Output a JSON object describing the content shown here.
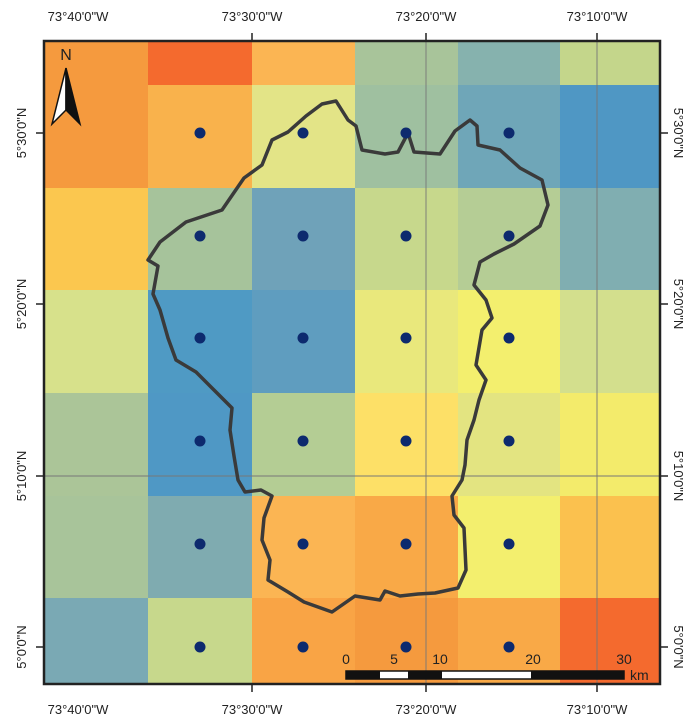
{
  "map": {
    "top_labels": [
      "73°40'0\"W",
      "73°30'0\"W",
      "73°20'0\"W",
      "73°10'0\"W"
    ],
    "bottom_labels": [
      "73°40'0\"W",
      "73°30'0\"W",
      "73°20'0\"W",
      "73°10'0\"W"
    ],
    "left_labels": [
      "5°30'0\"N",
      "5°20'0\"N",
      "5°10'0\"N",
      "5°0'0\"N"
    ],
    "right_labels": [
      "5°30'0\"N",
      "5°20'0\"N",
      "5°10'0\"N",
      "5°0'0\"N"
    ],
    "north_label": "N",
    "scale": {
      "ticks": [
        "0",
        "5",
        "10",
        "20",
        "30"
      ],
      "unit": "km"
    },
    "grid_colors": [
      [
        "#f59a3e",
        "#f46a2e",
        "#fbb553",
        "#a8c49a",
        "#86b2ae",
        "#c4d68b"
      ],
      [
        "#f59a3e",
        "#f9b24c",
        "#e3e487",
        "#9fc0a0",
        "#6fa6b8",
        "#4f97c4"
      ],
      [
        "#fbc74f",
        "#a6c39b",
        "#6fa2b9",
        "#c7d88c",
        "#b5cd95",
        "#80aeb1"
      ],
      [
        "#d7e18b",
        "#4f9ac4",
        "#5f9dbf",
        "#e9e87c",
        "#f3ef6e",
        "#d3df8d"
      ],
      [
        "#abc598",
        "#4f98c5",
        "#b4cd94",
        "#fde067",
        "#e3e481",
        "#f3eb6b"
      ],
      [
        "#a8c49a",
        "#7fabb0",
        "#fbb553",
        "#f9a947",
        "#f3ef6e",
        "#fbc14e"
      ],
      [
        "#7aa9b4",
        "#c7d88c",
        "#f9a445",
        "#f59a3e",
        "#f9a947",
        "#f46a2e"
      ]
    ],
    "point_color": "#0d2a6e",
    "outline_color": "#3a3a3a",
    "frame_color": "#222222"
  }
}
